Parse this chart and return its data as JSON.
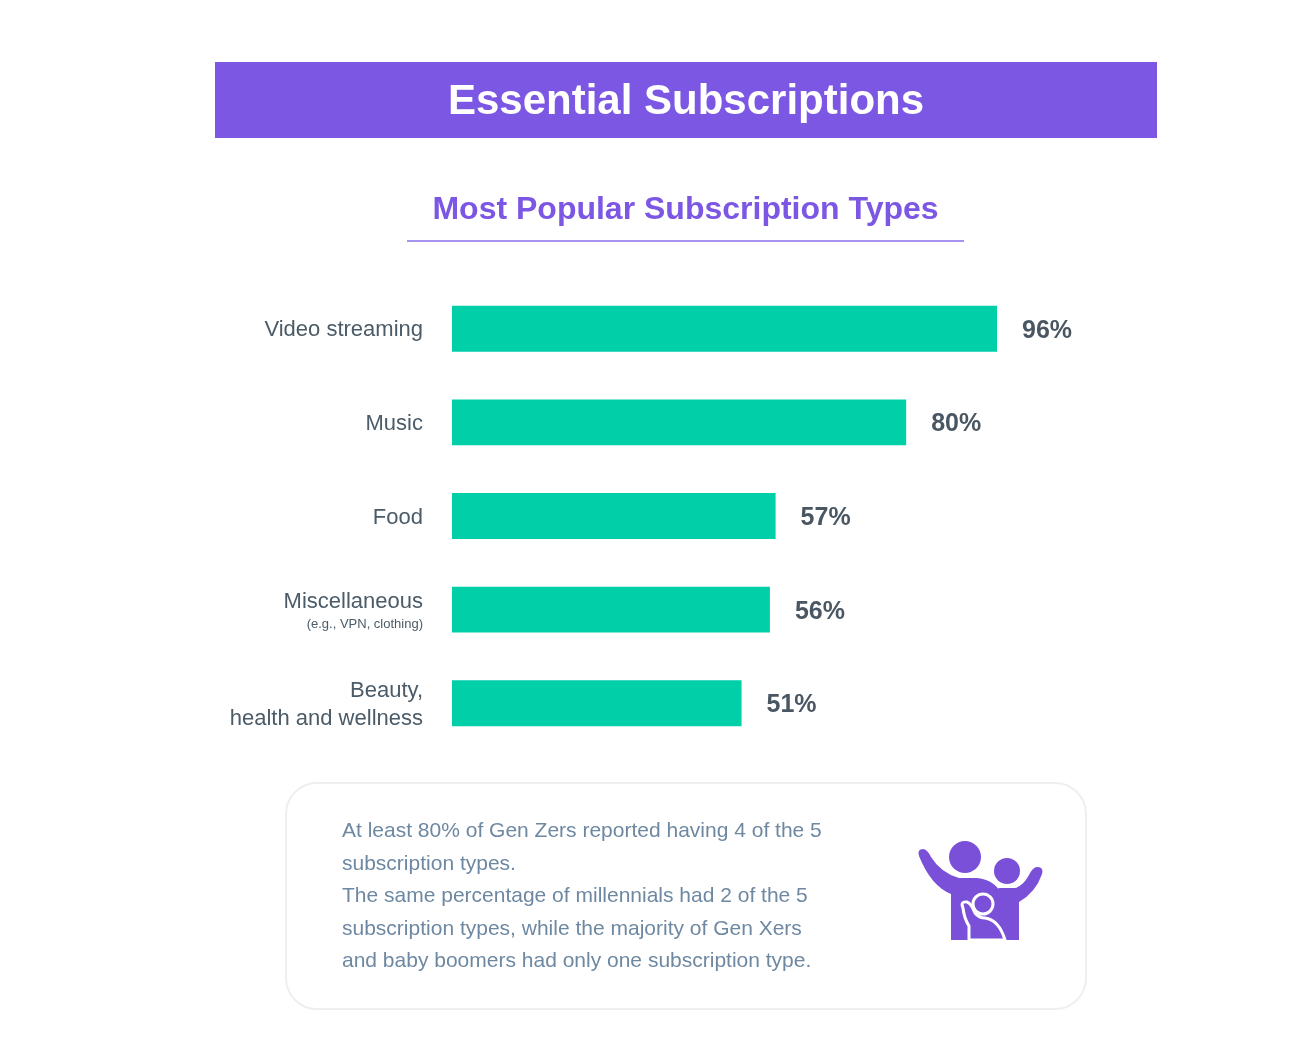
{
  "chart_data": {
    "type": "bar",
    "orientation": "horizontal",
    "title": "Essential Subscriptions",
    "subtitle": "Most Popular Subscription Types",
    "categories": [
      "Video streaming",
      "Music",
      "Food",
      "Miscellaneous\n(e.g., VPN, clothing)",
      "Beauty,\nhealth and wellness"
    ],
    "values": [
      96,
      80,
      57,
      56,
      51
    ],
    "value_labels": [
      "96%",
      "80%",
      "57%",
      "56%",
      "51%"
    ],
    "color": "#00cfa8",
    "tick_labels": "y",
    "annotations": [
      "At least 80% of Gen Zers reported having 4 of the 5 subscription types.",
      "The same percentage of millennials had 2 of the 5 subscription types, while the majority of Gen Xers and baby boomers had only one subscription type."
    ]
  }
}
